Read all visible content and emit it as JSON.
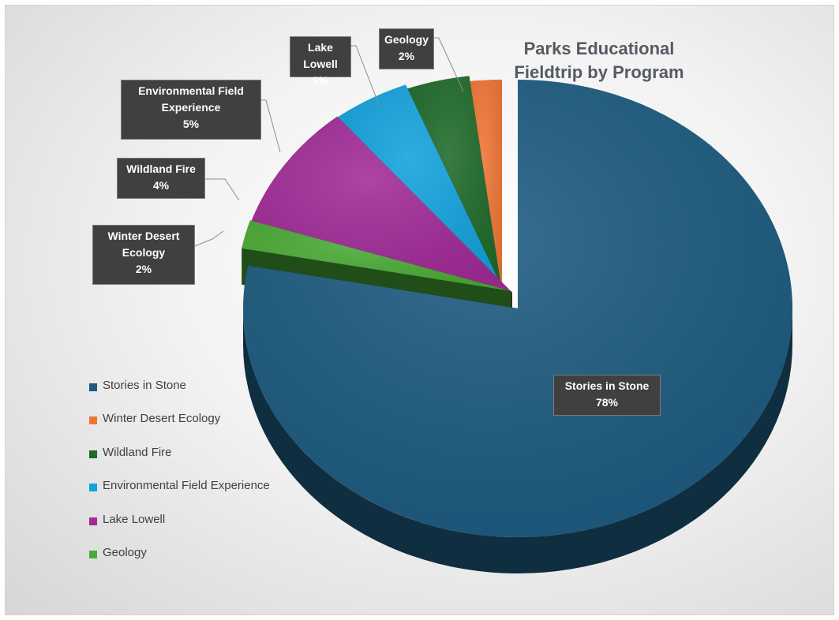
{
  "chart_data": {
    "type": "pie",
    "title": "Parks Educational Fieldtrip by Program",
    "unit": "%",
    "categories": [
      "Stories in Stone",
      "Winter Desert Ecology",
      "Wildland Fire",
      "Environmental Field Experience",
      "Lake Lowell",
      "Geology"
    ],
    "values": [
      78,
      2,
      4,
      5,
      9,
      2
    ],
    "data_labels": [
      {
        "category": "Stories in Stone",
        "value": "78%"
      },
      {
        "category": "Winter Desert Ecology",
        "value": "2%"
      },
      {
        "category": "Wildland Fire",
        "value": "4%"
      },
      {
        "category": "Environmental Field Experience",
        "value": "5%"
      },
      {
        "category": "Lake Lowell",
        "value": "9%"
      },
      {
        "category": "Geology",
        "value": "2%"
      }
    ],
    "colors": [
      "#1d5b80",
      "#ee7535",
      "#1f6a2a",
      "#13a2dc",
      "#a12b97",
      "#4aaa35"
    ],
    "legend_position": "left",
    "style": "3d-exploded",
    "grid": false
  }
}
